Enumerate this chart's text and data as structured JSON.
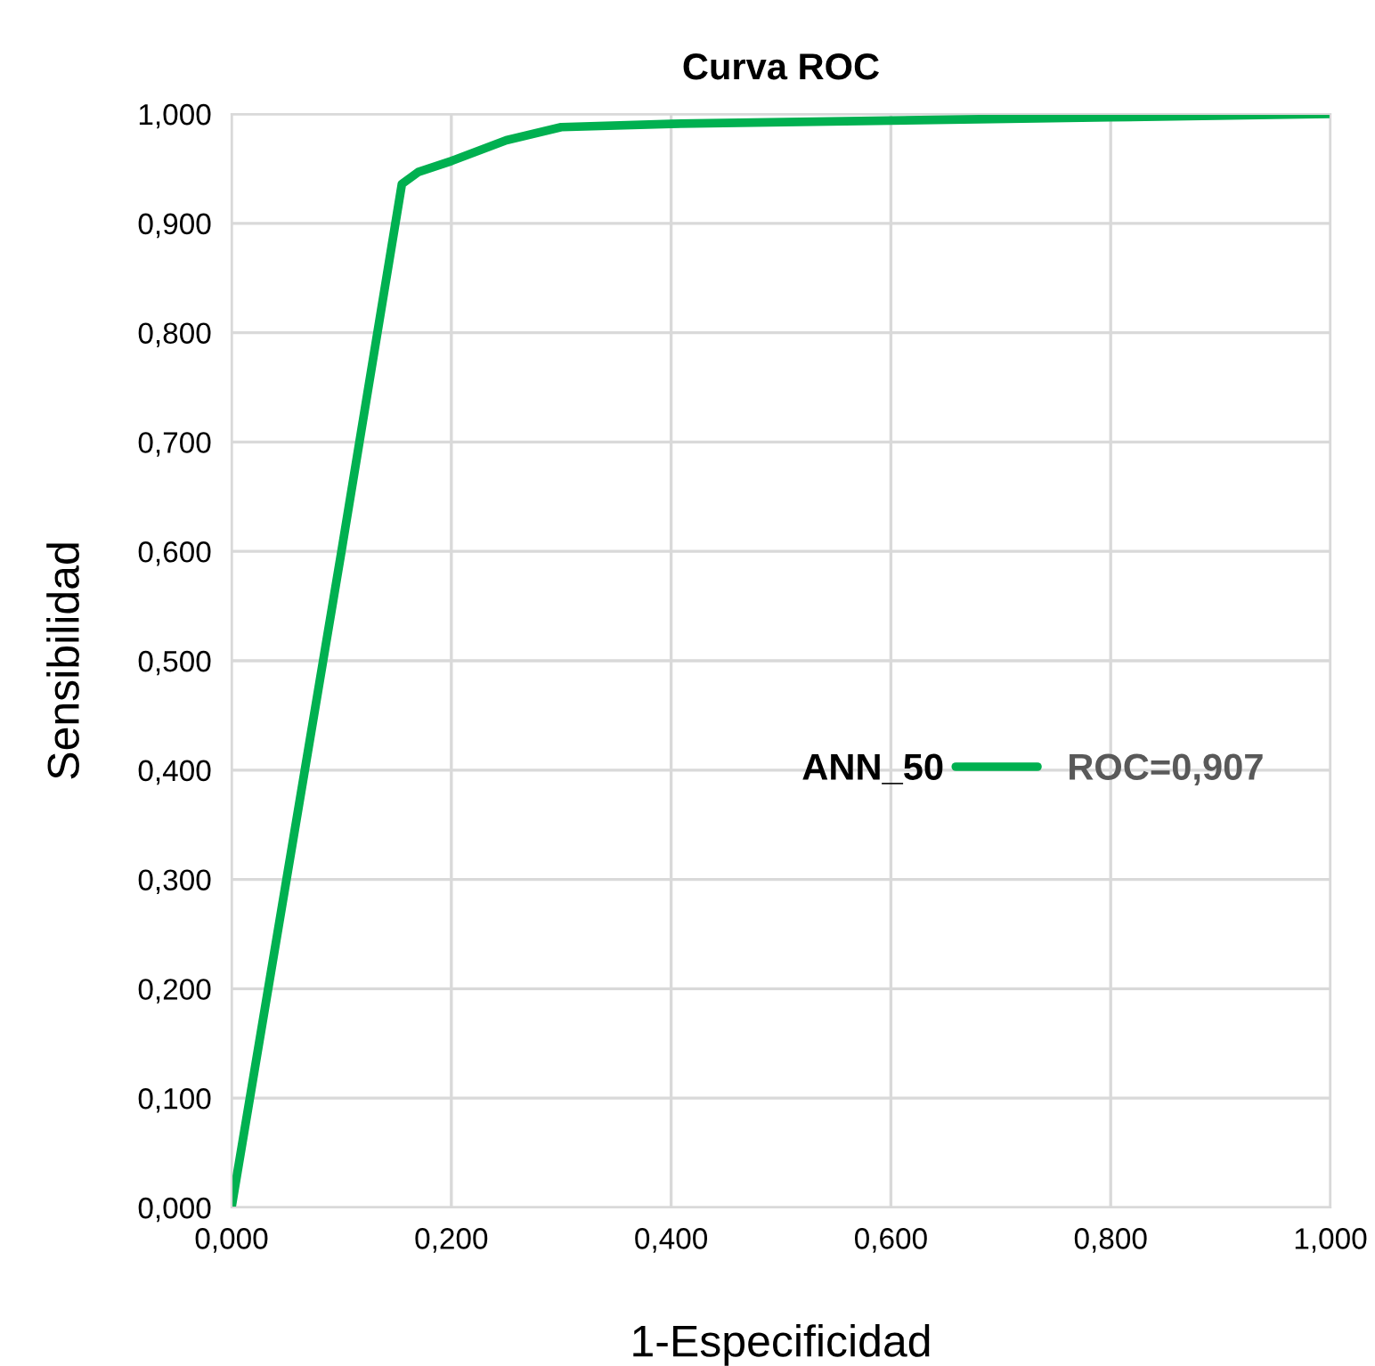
{
  "chart_data": {
    "type": "line",
    "title": "Curva ROC",
    "xlabel": "1-Especificidad",
    "ylabel": "Sensibilidad",
    "legend_title": "ANN_50",
    "legend": "right",
    "grid": true,
    "marker": "none",
    "line_style": "solid",
    "x": [
      0,
      0.05,
      0.1,
      0.155,
      0.17,
      0.2,
      0.25,
      0.3,
      0.4,
      0.6,
      0.8,
      1
    ],
    "series": [
      {
        "name": "ROC=0,907",
        "color": "#00b050",
        "values": [
          0,
          0.3,
          0.6,
          0.936,
          0.947,
          0.957,
          0.976,
          0.988,
          0.991,
          0.994,
          0.997,
          1
        ]
      }
    ],
    "xlim": [
      0,
      1
    ],
    "ylim": [
      0,
      1
    ],
    "xticks": [
      {
        "value": 0,
        "label": "0,000"
      },
      {
        "value": 0.2,
        "label": "0,200"
      },
      {
        "value": 0.4,
        "label": "0,400"
      },
      {
        "value": 0.6,
        "label": "0,600"
      },
      {
        "value": 0.8,
        "label": "0,800"
      },
      {
        "value": 1,
        "label": "1,000"
      }
    ],
    "yticks": [
      {
        "value": 0,
        "label": "0,000"
      },
      {
        "value": 0.1,
        "label": "0,100"
      },
      {
        "value": 0.2,
        "label": "0,200"
      },
      {
        "value": 0.3,
        "label": "0,300"
      },
      {
        "value": 0.4,
        "label": "0,400"
      },
      {
        "value": 0.5,
        "label": "0,500"
      },
      {
        "value": 0.6,
        "label": "0,600"
      },
      {
        "value": 0.7,
        "label": "0,700"
      },
      {
        "value": 0.8,
        "label": "0,800"
      },
      {
        "value": 0.9,
        "label": "0,900"
      },
      {
        "value": 1,
        "label": "1,000"
      }
    ]
  }
}
